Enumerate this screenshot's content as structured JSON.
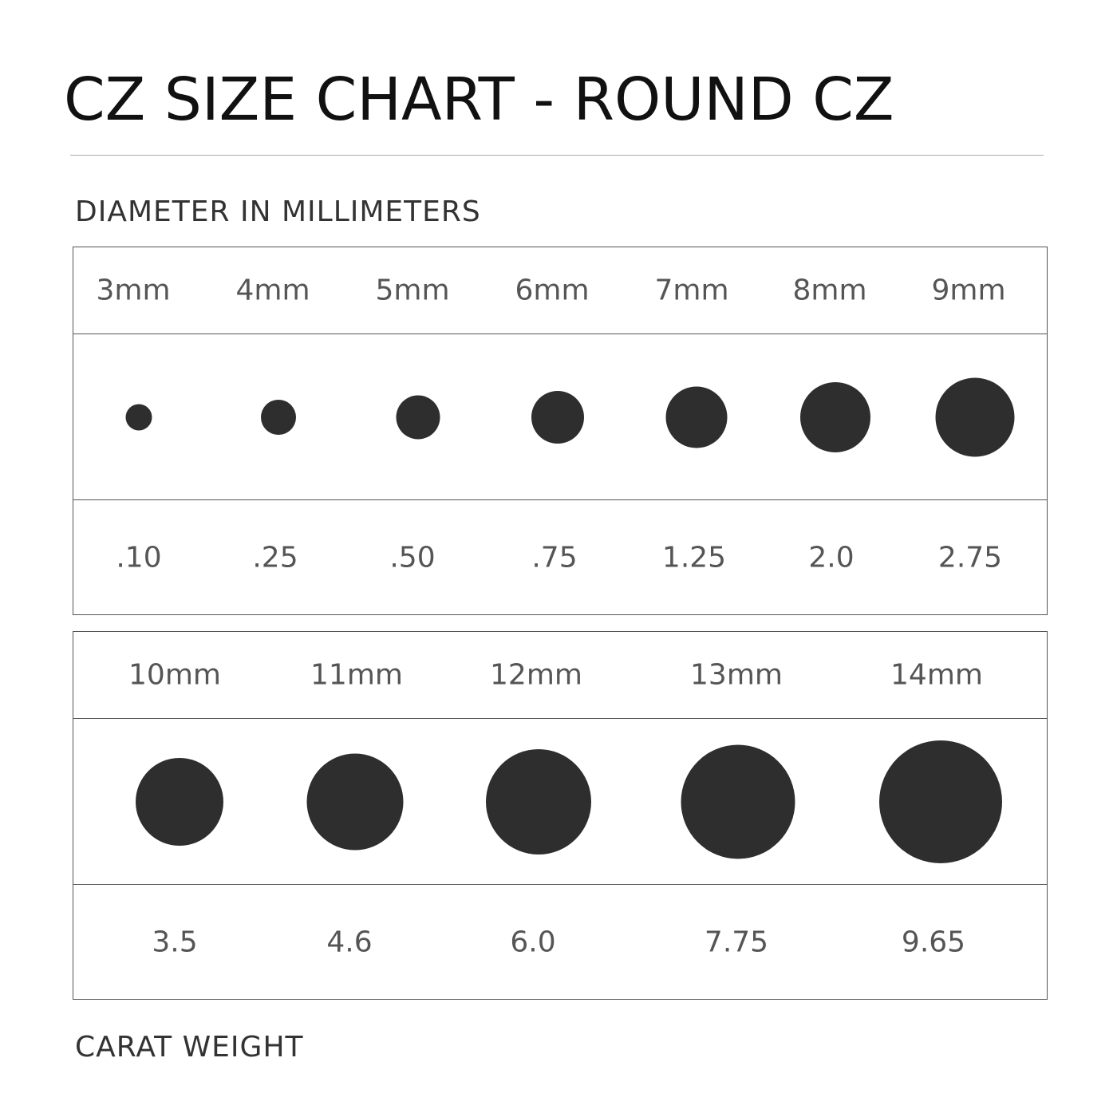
{
  "title": "CZ SIZE CHART - ROUND CZ",
  "subtitle_top": "DIAMETER IN MILLIMETERS",
  "subtitle_bottom": "CARAT WEIGHT",
  "colors": {
    "stone": "#2e2e2e",
    "text": "#555555"
  },
  "table1": {
    "sizes": [
      "3mm",
      "4mm",
      "5mm",
      "6mm",
      "7mm",
      "8mm",
      "9mm"
    ],
    "diameters_mm": [
      3,
      4,
      5,
      6,
      7,
      8,
      9
    ],
    "carats": [
      ".10",
      ".25",
      ".50",
      ".75",
      "1.25",
      "2.0",
      "2.75"
    ]
  },
  "table2": {
    "sizes": [
      "10mm",
      "11mm",
      "12mm",
      "13mm",
      "14mm"
    ],
    "diameters_mm": [
      10,
      11,
      12,
      13,
      14
    ],
    "carats": [
      "3.5",
      "4.6",
      "6.0",
      "7.75",
      "9.65"
    ]
  }
}
